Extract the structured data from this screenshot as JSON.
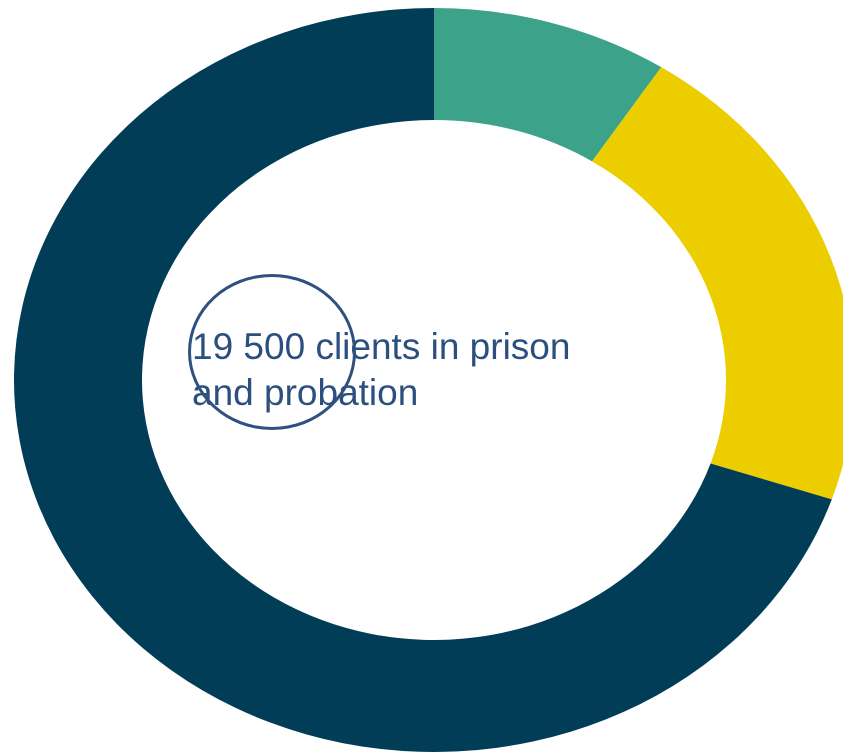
{
  "chart_data": {
    "type": "pie",
    "variant": "donut",
    "center_text": [
      "19 500 clients in prison",
      "and probation"
    ],
    "slices": [
      {
        "value": 0.091,
        "color": "#3ca38a"
      },
      {
        "value": 0.211,
        "color": "#eccd00"
      },
      {
        "value": 0.698,
        "color": "#023d58"
      }
    ],
    "start_angle": "top",
    "direction": "clockwise",
    "annotation": "circle around the number 19 500"
  },
  "colors": {
    "text": "#2b4f7e",
    "annotation": "#2f5180",
    "background": "#ffffff"
  }
}
